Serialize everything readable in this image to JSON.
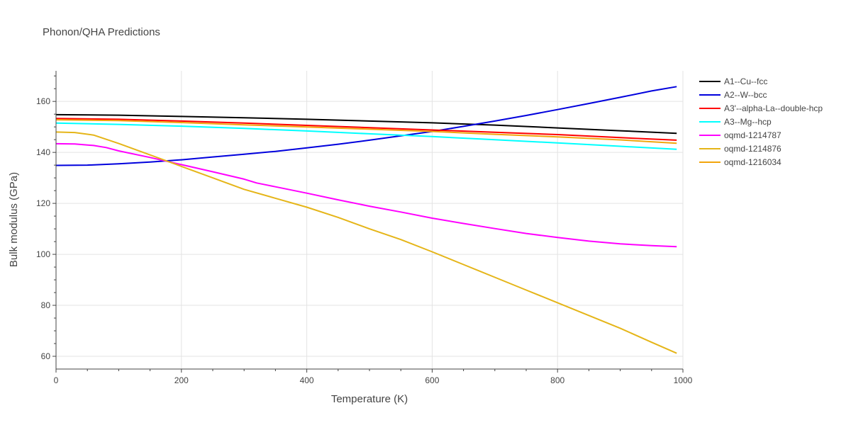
{
  "chart_data": {
    "type": "line",
    "title": "Phonon/QHA Predictions",
    "xlabel": "Temperature (K)",
    "ylabel": "Bulk modulus (GPa)",
    "xlim": [
      0,
      1000
    ],
    "ylim": [
      55,
      172
    ],
    "xticks": [
      0,
      200,
      400,
      600,
      800,
      1000
    ],
    "yticks": [
      60,
      80,
      100,
      120,
      140,
      160
    ],
    "grid": true,
    "legend_position": "right",
    "series": [
      {
        "name": "A1--Cu--fcc",
        "color": "#000000",
        "x": [
          0,
          100,
          200,
          300,
          400,
          500,
          600,
          700,
          800,
          900,
          990
        ],
        "y": [
          154.8,
          154.6,
          154.1,
          153.6,
          153.0,
          152.3,
          151.6,
          150.7,
          149.6,
          148.5,
          147.5
        ]
      },
      {
        "name": "A2--W--bcc",
        "color": "#0000dd",
        "x": [
          0,
          50,
          100,
          150,
          200,
          250,
          300,
          350,
          400,
          450,
          500,
          550,
          600,
          650,
          700,
          750,
          800,
          850,
          900,
          950,
          990
        ],
        "y": [
          134.9,
          135.0,
          135.5,
          136.2,
          137.1,
          138.2,
          139.3,
          140.4,
          141.8,
          143.2,
          144.8,
          146.5,
          148.2,
          150.2,
          152.3,
          154.5,
          156.8,
          159.2,
          161.6,
          164.1,
          165.8
        ]
      },
      {
        "name": "A3'--alpha-La--double-hcp",
        "color": "#ff0000",
        "x": [
          0,
          100,
          200,
          300,
          400,
          500,
          600,
          700,
          800,
          900,
          990
        ],
        "y": [
          153.3,
          153.0,
          152.3,
          151.5,
          150.6,
          149.7,
          148.8,
          147.9,
          147.0,
          145.8,
          144.8
        ]
      },
      {
        "name": "A3--Mg--hcp",
        "color": "#00ffff",
        "x": [
          0,
          100,
          200,
          300,
          400,
          500,
          600,
          700,
          800,
          900,
          990
        ],
        "y": [
          151.5,
          151.0,
          150.3,
          149.4,
          148.4,
          147.3,
          146.2,
          145.0,
          143.7,
          142.4,
          141.2
        ]
      },
      {
        "name": "oqmd-1214787",
        "color": "#ff00ff",
        "x": [
          0,
          30,
          60,
          80,
          100,
          150,
          200,
          250,
          300,
          320,
          350,
          400,
          450,
          500,
          550,
          600,
          650,
          700,
          750,
          800,
          850,
          900,
          950,
          990
        ],
        "y": [
          143.4,
          143.3,
          142.7,
          141.9,
          140.6,
          138.0,
          135.2,
          132.4,
          129.5,
          128.0,
          126.5,
          124.0,
          121.4,
          118.9,
          116.6,
          114.2,
          112.1,
          110.1,
          108.2,
          106.6,
          105.2,
          104.1,
          103.4,
          103.0
        ]
      },
      {
        "name": "oqmd-1214876",
        "color": "#e5b518",
        "x": [
          0,
          30,
          60,
          100,
          150,
          200,
          250,
          300,
          350,
          400,
          450,
          500,
          550,
          600,
          650,
          700,
          750,
          800,
          850,
          900,
          950,
          990
        ],
        "y": [
          148.0,
          147.8,
          146.8,
          143.5,
          139.0,
          134.5,
          130.0,
          125.5,
          122.0,
          118.5,
          114.5,
          110.0,
          105.8,
          101.0,
          96.0,
          91.0,
          86.0,
          81.0,
          76.0,
          71.0,
          65.5,
          61.2
        ]
      },
      {
        "name": "oqmd-1216034",
        "color": "#f2a50c",
        "x": [
          0,
          100,
          200,
          300,
          400,
          500,
          600,
          700,
          800,
          900,
          990
        ],
        "y": [
          152.8,
          152.5,
          151.7,
          150.8,
          150.0,
          149.1,
          148.2,
          147.1,
          146.1,
          144.9,
          143.6
        ]
      }
    ]
  }
}
